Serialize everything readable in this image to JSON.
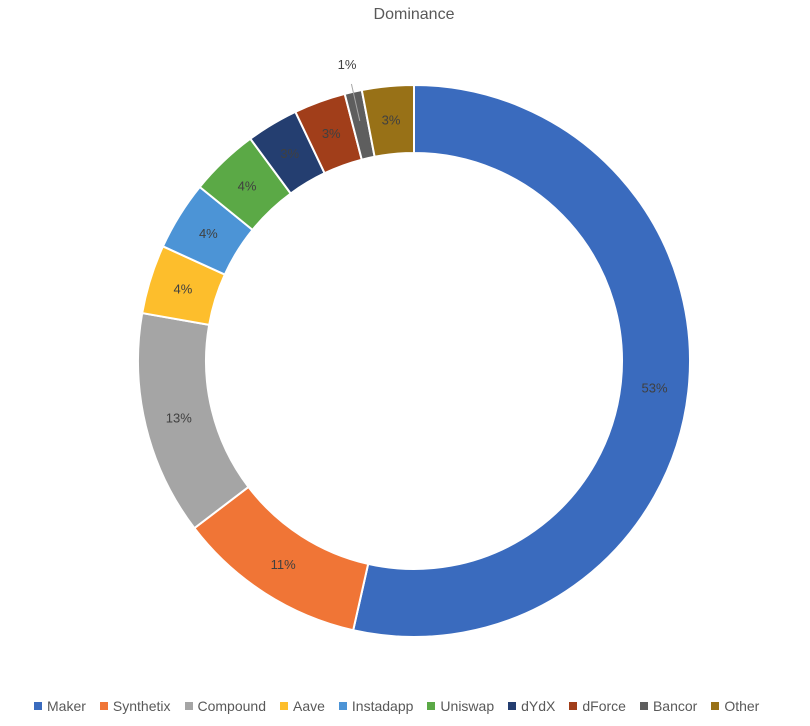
{
  "chart_data": {
    "type": "pie",
    "subtype": "doughnut",
    "title": "Dominance",
    "legend_position": "bottom",
    "slices": [
      {
        "name": "Maker",
        "value": 53,
        "label": "53%",
        "color": "#3A6BBE"
      },
      {
        "name": "Synthetix",
        "value": 11,
        "label": "11%",
        "color": "#F07536"
      },
      {
        "name": "Compound",
        "value": 13,
        "label": "13%",
        "color": "#A5A5A5"
      },
      {
        "name": "Aave",
        "value": 4,
        "label": "4%",
        "color": "#FDBE2C"
      },
      {
        "name": "Instadapp",
        "value": 4,
        "label": "4%",
        "color": "#4C94D6"
      },
      {
        "name": "Uniswap",
        "value": 4,
        "label": "4%",
        "color": "#5BA946"
      },
      {
        "name": "dYdX",
        "value": 3,
        "label": "3%",
        "color": "#243E70"
      },
      {
        "name": "dForce",
        "value": 3,
        "label": "3%",
        "color": "#A13E1A"
      },
      {
        "name": "Bancor",
        "value": 1,
        "label": "1%",
        "color": "#5E5E5E"
      },
      {
        "name": "Other",
        "value": 3,
        "label": "3%",
        "color": "#987117"
      }
    ]
  }
}
